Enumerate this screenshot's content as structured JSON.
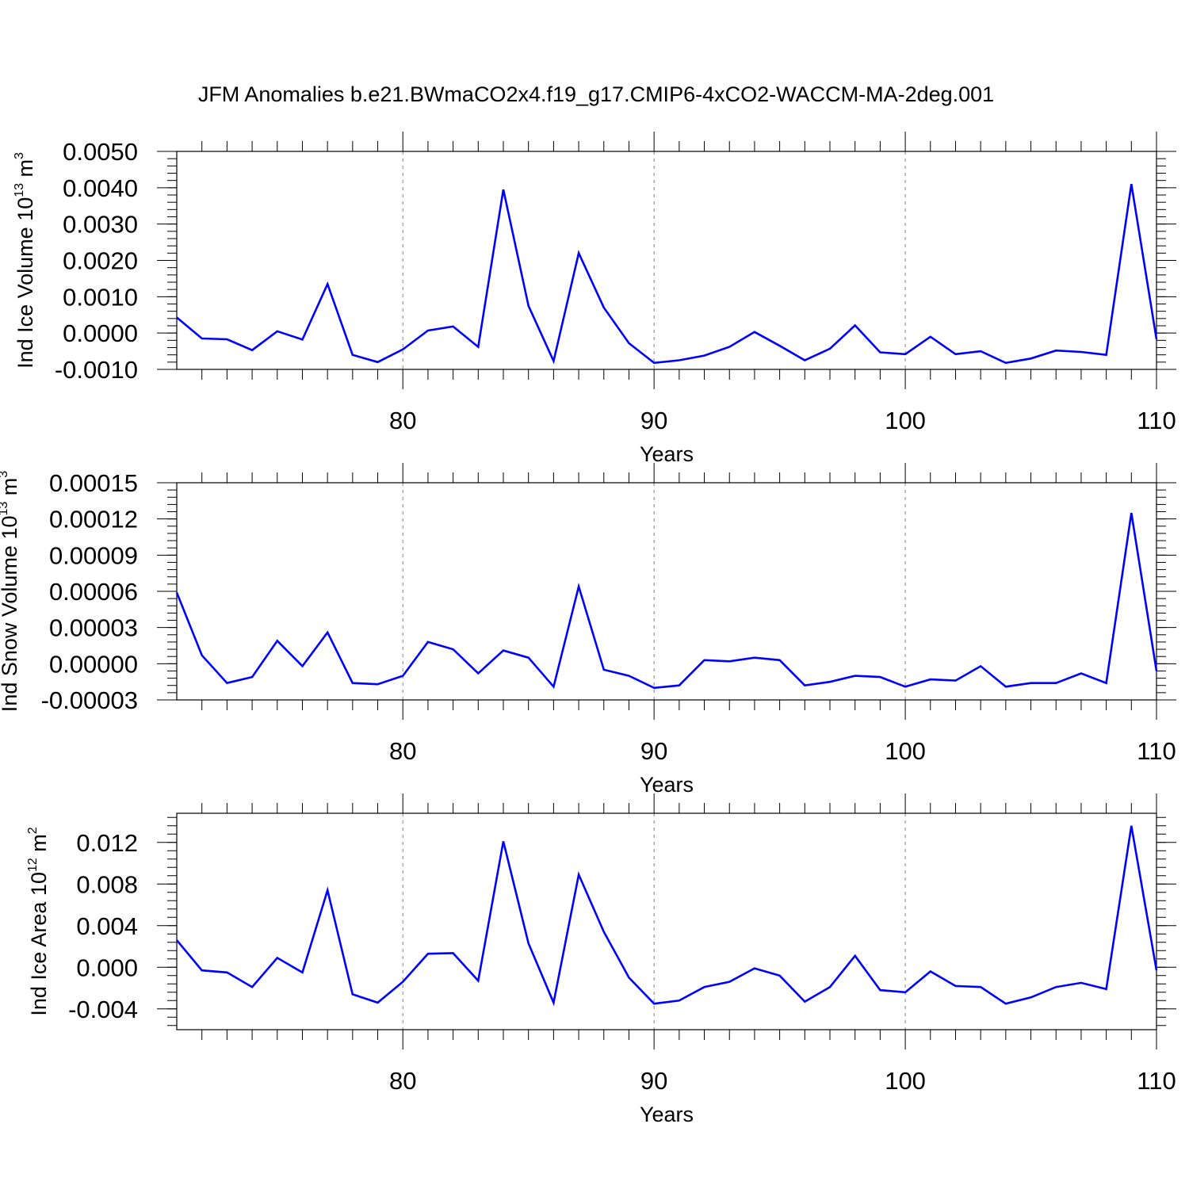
{
  "title": "JFM Anomalies b.e21.BWmaCO2x4.f19_g17.CMIP6-4xCO2-WACCM-MA-2deg.001",
  "colors": {
    "line": "#0000ff",
    "axis": "#000000",
    "grid": "#808080"
  },
  "chart_data": [
    {
      "type": "line",
      "ylabel": "Ind Ice Volume 10",
      "ylabel_exponent": "13",
      "ylabel_unit": " m",
      "ylabel_unit_exponent": "3",
      "xlabel": "Years",
      "xlim": [
        71,
        110
      ],
      "ylim": [
        -0.001,
        0.005
      ],
      "xticks": [
        80,
        90,
        100,
        110
      ],
      "xtick_labels": [
        "80",
        "90",
        "100",
        "110"
      ],
      "yticks": [
        -0.001,
        0.0,
        0.001,
        0.002,
        0.003,
        0.004,
        0.005
      ],
      "ytick_labels": [
        "-0.0010",
        "0.0000",
        "0.0010",
        "0.0020",
        "0.0030",
        "0.0040",
        "0.0050"
      ],
      "y_minor_step": 0.0002,
      "grid": "x-dashed",
      "x": [
        71,
        72,
        73,
        74,
        75,
        76,
        77,
        78,
        79,
        80,
        81,
        82,
        83,
        84,
        85,
        86,
        87,
        88,
        89,
        90,
        91,
        92,
        93,
        94,
        95,
        96,
        97,
        98,
        99,
        100,
        101,
        102,
        103,
        104,
        105,
        106,
        107,
        108,
        109,
        110
      ],
      "values": [
        0.00043,
        -0.00015,
        -0.00017,
        -0.00047,
        5e-05,
        -0.00018,
        0.00135,
        -0.0006,
        -0.0008,
        -0.00045,
        7e-05,
        0.00018,
        -0.00038,
        0.00395,
        0.00075,
        -0.00077,
        0.0022,
        0.0007,
        -0.00028,
        -0.00082,
        -0.00075,
        -0.00062,
        -0.00038,
        3e-05,
        -0.00035,
        -0.00075,
        -0.00043,
        0.00021,
        -0.00053,
        -0.00058,
        -0.0001,
        -0.00058,
        -0.0005,
        -0.00082,
        -0.0007,
        -0.00048,
        -0.00052,
        -0.0006,
        0.0041,
        -0.00017
      ]
    },
    {
      "type": "line",
      "ylabel": "Ind Snow Volume 10",
      "ylabel_exponent": "13",
      "ylabel_unit": " m",
      "ylabel_unit_exponent": "3",
      "xlabel": "Years",
      "xlim": [
        71,
        110
      ],
      "ylim": [
        -3e-05,
        0.00015
      ],
      "xticks": [
        80,
        90,
        100,
        110
      ],
      "xtick_labels": [
        "80",
        "90",
        "100",
        "110"
      ],
      "yticks": [
        -3e-05,
        0.0,
        3e-05,
        6e-05,
        9e-05,
        0.00012,
        0.00015
      ],
      "ytick_labels": [
        "-0.00003",
        "0.00000",
        "0.00003",
        "0.00006",
        "0.00009",
        "0.00012",
        "0.00015"
      ],
      "y_minor_step": 6e-06,
      "grid": "x-dashed",
      "x": [
        71,
        72,
        73,
        74,
        75,
        76,
        77,
        78,
        79,
        80,
        81,
        82,
        83,
        84,
        85,
        86,
        87,
        88,
        89,
        90,
        91,
        92,
        93,
        94,
        95,
        96,
        97,
        98,
        99,
        100,
        101,
        102,
        103,
        104,
        105,
        106,
        107,
        108,
        109,
        110
      ],
      "values": [
        5.9e-05,
        7e-06,
        -1.6e-05,
        -1.1e-05,
        1.9e-05,
        -2e-06,
        2.6e-05,
        -1.6e-05,
        -1.7e-05,
        -1e-05,
        1.8e-05,
        1.2e-05,
        -8e-06,
        1.1e-05,
        5e-06,
        -1.9e-05,
        6.4e-05,
        -5e-06,
        -1e-05,
        -2e-05,
        -1.8e-05,
        3e-06,
        2e-06,
        5e-06,
        3e-06,
        -1.8e-05,
        -1.5e-05,
        -1e-05,
        -1.1e-05,
        -1.9e-05,
        -1.3e-05,
        -1.4e-05,
        -2e-06,
        -1.9e-05,
        -1.6e-05,
        -1.6e-05,
        -8e-06,
        -1.6e-05,
        0.000125,
        -6e-06
      ]
    },
    {
      "type": "line",
      "ylabel": "Ind Ice Area 10",
      "ylabel_exponent": "12",
      "ylabel_unit": " m",
      "ylabel_unit_exponent": "2",
      "xlabel": "Years",
      "xlim": [
        71,
        110
      ],
      "ylim": [
        -0.006,
        0.0148
      ],
      "xticks": [
        80,
        90,
        100,
        110
      ],
      "xtick_labels": [
        "80",
        "90",
        "100",
        "110"
      ],
      "yticks": [
        -0.004,
        0.0,
        0.004,
        0.008,
        0.012
      ],
      "ytick_labels": [
        "-0.004",
        "0.000",
        "0.004",
        "0.008",
        "0.012"
      ],
      "y_minor_step": 0.0008,
      "grid": "x-dashed",
      "x": [
        71,
        72,
        73,
        74,
        75,
        76,
        77,
        78,
        79,
        80,
        81,
        82,
        83,
        84,
        85,
        86,
        87,
        88,
        89,
        90,
        91,
        92,
        93,
        94,
        95,
        96,
        97,
        98,
        99,
        100,
        101,
        102,
        103,
        104,
        105,
        106,
        107,
        108,
        109,
        110
      ],
      "values": [
        0.0026,
        -0.0003,
        -0.0005,
        -0.0019,
        0.0009,
        -0.0005,
        0.0074,
        -0.0026,
        -0.0034,
        -0.0014,
        0.0013,
        0.00135,
        -0.0013,
        0.0121,
        0.0023,
        -0.0034,
        0.0089,
        0.0034,
        -0.001,
        -0.0035,
        -0.0032,
        -0.0019,
        -0.0014,
        -0.0001,
        -0.0008,
        -0.0033,
        -0.0019,
        0.0011,
        -0.0022,
        -0.0024,
        -0.0004,
        -0.0018,
        -0.0019,
        -0.0035,
        -0.0029,
        -0.0019,
        -0.0015,
        -0.0021,
        0.0136,
        -0.0003
      ]
    }
  ]
}
